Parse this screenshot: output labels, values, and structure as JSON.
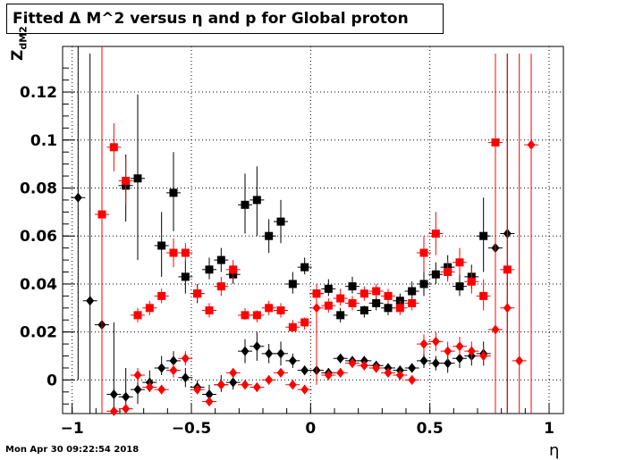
{
  "header": {
    "title": "Fitted Δ M^2 versus η and p for Global proton",
    "ylabel": "Z",
    "ylabel_sub": "dM2",
    "xlabel": "η",
    "timestamp": "Mon Apr 30 09:22:54 2018"
  },
  "chart_data": {
    "type": "scatter",
    "title": "Fitted Δ M^2 versus η and p for Global proton",
    "xlabel": "η",
    "ylabel": "Z dM2",
    "xlim": [
      -1.04,
      1.06
    ],
    "ylim": [
      -0.014,
      0.139
    ],
    "grid": true,
    "xticks": [
      -1,
      -0.5,
      0,
      0.5,
      1
    ],
    "xtick_labels": [
      "−1",
      "−0.5",
      "0",
      "0.5",
      "1"
    ],
    "yticks": [
      0,
      0.02,
      0.04,
      0.06,
      0.08,
      0.1,
      0.12
    ],
    "ytick_labels": [
      "0",
      "0.02",
      "0.04",
      "0.06",
      "0.08",
      "0.1",
      "0.12"
    ],
    "series": [
      {
        "color": "#000000",
        "marker": "square",
        "points": [
          {
            "x": -0.775,
            "y": 0.081,
            "lo": 0.066,
            "hi": 0.094
          },
          {
            "x": -0.725,
            "y": 0.084,
            "lo": 0.05,
            "hi": 0.119
          },
          {
            "x": -0.625,
            "y": 0.056,
            "lo": 0.043,
            "hi": 0.07
          },
          {
            "x": -0.575,
            "y": 0.078,
            "lo": 0.062,
            "hi": 0.095
          },
          {
            "x": -0.525,
            "y": 0.043,
            "lo": 0.036,
            "hi": 0.05
          },
          {
            "x": -0.475,
            "y": 0.036,
            "lo": 0.032,
            "hi": 0.04
          },
          {
            "x": -0.425,
            "y": 0.046,
            "lo": 0.042,
            "hi": 0.051
          },
          {
            "x": -0.375,
            "y": 0.05,
            "lo": 0.045,
            "hi": 0.055
          },
          {
            "x": -0.325,
            "y": 0.044,
            "lo": 0.04,
            "hi": 0.048
          },
          {
            "x": -0.275,
            "y": 0.073,
            "lo": 0.061,
            "hi": 0.086
          },
          {
            "x": -0.225,
            "y": 0.075,
            "lo": 0.06,
            "hi": 0.089
          },
          {
            "x": -0.175,
            "y": 0.06,
            "lo": 0.053,
            "hi": 0.067
          },
          {
            "x": -0.125,
            "y": 0.066,
            "lo": 0.057,
            "hi": 0.075
          },
          {
            "x": -0.075,
            "y": 0.04,
            "lo": 0.036,
            "hi": 0.045
          },
          {
            "x": -0.025,
            "y": 0.047,
            "lo": 0.044,
            "hi": 0.051
          },
          {
            "x": 0.025,
            "y": 0.036,
            "lo": 0.032,
            "hi": 0.04
          },
          {
            "x": 0.075,
            "y": 0.038,
            "lo": 0.035,
            "hi": 0.042
          },
          {
            "x": 0.125,
            "y": 0.027,
            "lo": 0.024,
            "hi": 0.03
          },
          {
            "x": 0.175,
            "y": 0.039,
            "lo": 0.036,
            "hi": 0.043
          },
          {
            "x": 0.225,
            "y": 0.029,
            "lo": 0.026,
            "hi": 0.031
          },
          {
            "x": 0.275,
            "y": 0.032,
            "lo": 0.029,
            "hi": 0.035
          },
          {
            "x": 0.325,
            "y": 0.03,
            "lo": 0.027,
            "hi": 0.033
          },
          {
            "x": 0.375,
            "y": 0.033,
            "lo": 0.03,
            "hi": 0.036
          },
          {
            "x": 0.425,
            "y": 0.037,
            "lo": 0.033,
            "hi": 0.041
          },
          {
            "x": 0.475,
            "y": 0.04,
            "lo": 0.035,
            "hi": 0.045
          },
          {
            "x": 0.525,
            "y": 0.044,
            "lo": 0.04,
            "hi": 0.049
          },
          {
            "x": 0.575,
            "y": 0.047,
            "lo": 0.042,
            "hi": 0.052
          },
          {
            "x": 0.625,
            "y": 0.039,
            "lo": 0.035,
            "hi": 0.044
          },
          {
            "x": 0.675,
            "y": 0.043,
            "lo": 0.038,
            "hi": 0.048
          },
          {
            "x": 0.725,
            "y": 0.06,
            "lo": 0.045,
            "hi": 0.076
          }
        ]
      },
      {
        "color": "#000000",
        "marker": "diamond",
        "points": [
          {
            "x": -0.975,
            "y": 0.076,
            "lo": 0.0,
            "hi": 0.14
          },
          {
            "x": -0.925,
            "y": 0.033,
            "lo": -0.014,
            "hi": 0.136
          },
          {
            "x": -0.875,
            "y": 0.023,
            "lo": -0.014,
            "hi": 0.136
          },
          {
            "x": -0.825,
            "y": -0.006,
            "lo": -0.014,
            "hi": 0.024
          },
          {
            "x": -0.775,
            "y": -0.007,
            "lo": -0.014,
            "hi": 0.005
          },
          {
            "x": -0.725,
            "y": -0.004,
            "lo": -0.01,
            "hi": 0.004
          },
          {
            "x": -0.675,
            "y": -0.001,
            "lo": -0.005,
            "hi": 0.004
          },
          {
            "x": -0.625,
            "y": 0.005,
            "lo": 0.002,
            "hi": 0.01
          },
          {
            "x": -0.575,
            "y": 0.008,
            "lo": 0.004,
            "hi": 0.012
          },
          {
            "x": -0.525,
            "y": 0.001,
            "lo": -0.003,
            "hi": 0.005
          },
          {
            "x": -0.475,
            "y": -0.003,
            "lo": -0.006,
            "hi": 0.0
          },
          {
            "x": -0.425,
            "y": -0.006,
            "lo": -0.01,
            "hi": -0.002
          },
          {
            "x": -0.375,
            "y": -0.002,
            "lo": -0.005,
            "hi": 0.002
          },
          {
            "x": -0.325,
            "y": -0.001,
            "lo": -0.004,
            "hi": 0.002
          },
          {
            "x": -0.275,
            "y": 0.012,
            "lo": 0.007,
            "hi": 0.017
          },
          {
            "x": -0.225,
            "y": 0.014,
            "lo": 0.008,
            "hi": 0.02
          },
          {
            "x": -0.175,
            "y": 0.011,
            "lo": 0.007,
            "hi": 0.015
          },
          {
            "x": -0.125,
            "y": 0.011,
            "lo": 0.006,
            "hi": 0.016
          },
          {
            "x": -0.075,
            "y": 0.008,
            "lo": 0.005,
            "hi": 0.011
          },
          {
            "x": -0.025,
            "y": 0.004,
            "lo": 0.002,
            "hi": 0.006
          },
          {
            "x": 0.025,
            "y": 0.004,
            "lo": 0.002,
            "hi": 0.006
          },
          {
            "x": 0.075,
            "y": 0.003,
            "lo": 0.001,
            "hi": 0.005
          },
          {
            "x": 0.125,
            "y": 0.009,
            "lo": 0.007,
            "hi": 0.011
          },
          {
            "x": 0.175,
            "y": 0.008,
            "lo": 0.006,
            "hi": 0.01
          },
          {
            "x": 0.225,
            "y": 0.008,
            "lo": 0.006,
            "hi": 0.01
          },
          {
            "x": 0.275,
            "y": 0.006,
            "lo": 0.004,
            "hi": 0.008
          },
          {
            "x": 0.325,
            "y": 0.005,
            "lo": 0.003,
            "hi": 0.007
          },
          {
            "x": 0.375,
            "y": 0.004,
            "lo": 0.002,
            "hi": 0.006
          },
          {
            "x": 0.425,
            "y": 0.005,
            "lo": 0.003,
            "hi": 0.007
          },
          {
            "x": 0.475,
            "y": 0.008,
            "lo": 0.005,
            "hi": 0.011
          },
          {
            "x": 0.525,
            "y": 0.007,
            "lo": 0.004,
            "hi": 0.01
          },
          {
            "x": 0.575,
            "y": 0.007,
            "lo": 0.003,
            "hi": 0.011
          },
          {
            "x": 0.625,
            "y": 0.009,
            "lo": 0.005,
            "hi": 0.013
          },
          {
            "x": 0.675,
            "y": 0.01,
            "lo": 0.006,
            "hi": 0.014
          },
          {
            "x": 0.725,
            "y": 0.011,
            "lo": 0.006,
            "hi": 0.016
          },
          {
            "x": 0.775,
            "y": 0.055,
            "lo": -0.014,
            "hi": 0.125
          },
          {
            "x": 0.825,
            "y": 0.061,
            "lo": -0.014,
            "hi": 0.136
          }
        ]
      },
      {
        "color": "#ff0000",
        "marker": "square",
        "points": [
          {
            "x": -0.875,
            "y": 0.069,
            "lo": -0.014,
            "hi": 0.14
          },
          {
            "x": -0.825,
            "y": 0.097,
            "lo": 0.087,
            "hi": 0.107
          },
          {
            "x": -0.775,
            "y": 0.083,
            "lo": 0.073,
            "hi": 0.093
          },
          {
            "x": -0.725,
            "y": 0.027,
            "lo": 0.024,
            "hi": 0.03
          },
          {
            "x": -0.675,
            "y": 0.03,
            "lo": 0.027,
            "hi": 0.033
          },
          {
            "x": -0.625,
            "y": 0.035,
            "lo": 0.032,
            "hi": 0.038
          },
          {
            "x": -0.575,
            "y": 0.053,
            "lo": 0.047,
            "hi": 0.059
          },
          {
            "x": -0.525,
            "y": 0.053,
            "lo": 0.049,
            "hi": 0.057
          },
          {
            "x": -0.475,
            "y": 0.036,
            "lo": 0.033,
            "hi": 0.039
          },
          {
            "x": -0.425,
            "y": 0.029,
            "lo": 0.026,
            "hi": 0.032
          },
          {
            "x": -0.375,
            "y": 0.039,
            "lo": 0.035,
            "hi": 0.043
          },
          {
            "x": -0.325,
            "y": 0.046,
            "lo": 0.042,
            "hi": 0.05
          },
          {
            "x": -0.275,
            "y": 0.027,
            "lo": 0.025,
            "hi": 0.03
          },
          {
            "x": -0.225,
            "y": 0.027,
            "lo": 0.024,
            "hi": 0.029
          },
          {
            "x": -0.175,
            "y": 0.03,
            "lo": 0.027,
            "hi": 0.033
          },
          {
            "x": -0.125,
            "y": 0.029,
            "lo": 0.026,
            "hi": 0.032
          },
          {
            "x": -0.075,
            "y": 0.022,
            "lo": 0.02,
            "hi": 0.025
          },
          {
            "x": -0.025,
            "y": 0.024,
            "lo": 0.021,
            "hi": 0.026
          },
          {
            "x": 0.025,
            "y": 0.036,
            "lo": 0.033,
            "hi": 0.039
          },
          {
            "x": 0.075,
            "y": 0.031,
            "lo": 0.028,
            "hi": 0.034
          },
          {
            "x": 0.125,
            "y": 0.034,
            "lo": 0.031,
            "hi": 0.038
          },
          {
            "x": 0.175,
            "y": 0.032,
            "lo": 0.029,
            "hi": 0.035
          },
          {
            "x": 0.225,
            "y": 0.036,
            "lo": 0.033,
            "hi": 0.039
          },
          {
            "x": 0.275,
            "y": 0.037,
            "lo": 0.034,
            "hi": 0.04
          },
          {
            "x": 0.325,
            "y": 0.035,
            "lo": 0.032,
            "hi": 0.038
          },
          {
            "x": 0.375,
            "y": 0.03,
            "lo": 0.027,
            "hi": 0.033
          },
          {
            "x": 0.425,
            "y": 0.032,
            "lo": 0.029,
            "hi": 0.035
          },
          {
            "x": 0.475,
            "y": 0.053,
            "lo": 0.045,
            "hi": 0.06
          },
          {
            "x": 0.525,
            "y": 0.061,
            "lo": 0.052,
            "hi": 0.07
          },
          {
            "x": 0.575,
            "y": 0.045,
            "lo": 0.041,
            "hi": 0.05
          },
          {
            "x": 0.625,
            "y": 0.049,
            "lo": 0.044,
            "hi": 0.055
          },
          {
            "x": 0.675,
            "y": 0.041,
            "lo": 0.036,
            "hi": 0.047
          },
          {
            "x": 0.725,
            "y": 0.035,
            "lo": 0.029,
            "hi": 0.042
          },
          {
            "x": 0.775,
            "y": 0.099,
            "lo": 0.085,
            "hi": 0.113
          },
          {
            "x": 0.825,
            "y": 0.046,
            "lo": -0.014,
            "hi": 0.136
          }
        ]
      },
      {
        "color": "#ff0000",
        "marker": "diamond",
        "points": [
          {
            "x": -0.825,
            "y": -0.013,
            "lo": -0.014,
            "hi": -0.011
          },
          {
            "x": -0.775,
            "y": -0.012,
            "lo": -0.014,
            "hi": -0.009
          },
          {
            "x": -0.725,
            "y": 0.002,
            "lo": -0.001,
            "hi": 0.005
          },
          {
            "x": -0.675,
            "y": -0.003,
            "lo": -0.005,
            "hi": 0.0
          },
          {
            "x": -0.625,
            "y": -0.004,
            "lo": -0.006,
            "hi": -0.002
          },
          {
            "x": -0.575,
            "y": 0.004,
            "lo": 0.001,
            "hi": 0.007
          },
          {
            "x": -0.525,
            "y": 0.009,
            "lo": 0.006,
            "hi": 0.012
          },
          {
            "x": -0.475,
            "y": -0.004,
            "lo": -0.006,
            "hi": -0.002
          },
          {
            "x": -0.425,
            "y": -0.009,
            "lo": -0.011,
            "hi": -0.007
          },
          {
            "x": -0.375,
            "y": -0.002,
            "lo": -0.004,
            "hi": 0.0
          },
          {
            "x": -0.325,
            "y": 0.003,
            "lo": 0.001,
            "hi": 0.005
          },
          {
            "x": -0.275,
            "y": -0.002,
            "lo": -0.004,
            "hi": 0.0
          },
          {
            "x": -0.225,
            "y": -0.003,
            "lo": -0.005,
            "hi": -0.001
          },
          {
            "x": -0.175,
            "y": 0.0,
            "lo": -0.002,
            "hi": 0.002
          },
          {
            "x": -0.125,
            "y": 0.003,
            "lo": 0.001,
            "hi": 0.005
          },
          {
            "x": -0.075,
            "y": -0.002,
            "lo": -0.004,
            "hi": 0.0
          },
          {
            "x": -0.025,
            "y": -0.004,
            "lo": -0.006,
            "hi": -0.002
          },
          {
            "x": 0.025,
            "y": 0.03,
            "lo": -0.002,
            "hi": 0.04
          },
          {
            "x": 0.075,
            "y": 0.002,
            "lo": 0.0,
            "hi": 0.004
          },
          {
            "x": 0.125,
            "y": 0.003,
            "lo": 0.001,
            "hi": 0.005
          },
          {
            "x": 0.175,
            "y": 0.007,
            "lo": 0.005,
            "hi": 0.009
          },
          {
            "x": 0.225,
            "y": 0.006,
            "lo": 0.004,
            "hi": 0.008
          },
          {
            "x": 0.275,
            "y": 0.005,
            "lo": 0.003,
            "hi": 0.007
          },
          {
            "x": 0.325,
            "y": 0.003,
            "lo": 0.001,
            "hi": 0.005
          },
          {
            "x": 0.375,
            "y": 0.002,
            "lo": 0.0,
            "hi": 0.004
          },
          {
            "x": 0.425,
            "y": 0.0,
            "lo": -0.002,
            "hi": 0.002
          },
          {
            "x": 0.475,
            "y": 0.015,
            "lo": 0.011,
            "hi": 0.019
          },
          {
            "x": 0.525,
            "y": 0.016,
            "lo": 0.012,
            "hi": 0.02
          },
          {
            "x": 0.575,
            "y": 0.012,
            "lo": 0.008,
            "hi": 0.016
          },
          {
            "x": 0.625,
            "y": 0.014,
            "lo": 0.01,
            "hi": 0.018
          },
          {
            "x": 0.675,
            "y": 0.012,
            "lo": 0.008,
            "hi": 0.016
          },
          {
            "x": 0.725,
            "y": 0.01,
            "lo": 0.006,
            "hi": 0.014
          },
          {
            "x": 0.775,
            "y": 0.021,
            "lo": -0.014,
            "hi": 0.136
          },
          {
            "x": 0.825,
            "y": 0.03,
            "lo": -0.014,
            "hi": 0.136
          },
          {
            "x": 0.875,
            "y": 0.008,
            "lo": -0.014,
            "hi": 0.136
          },
          {
            "x": 0.925,
            "y": 0.098,
            "lo": -0.014,
            "hi": 0.136
          }
        ]
      }
    ]
  }
}
